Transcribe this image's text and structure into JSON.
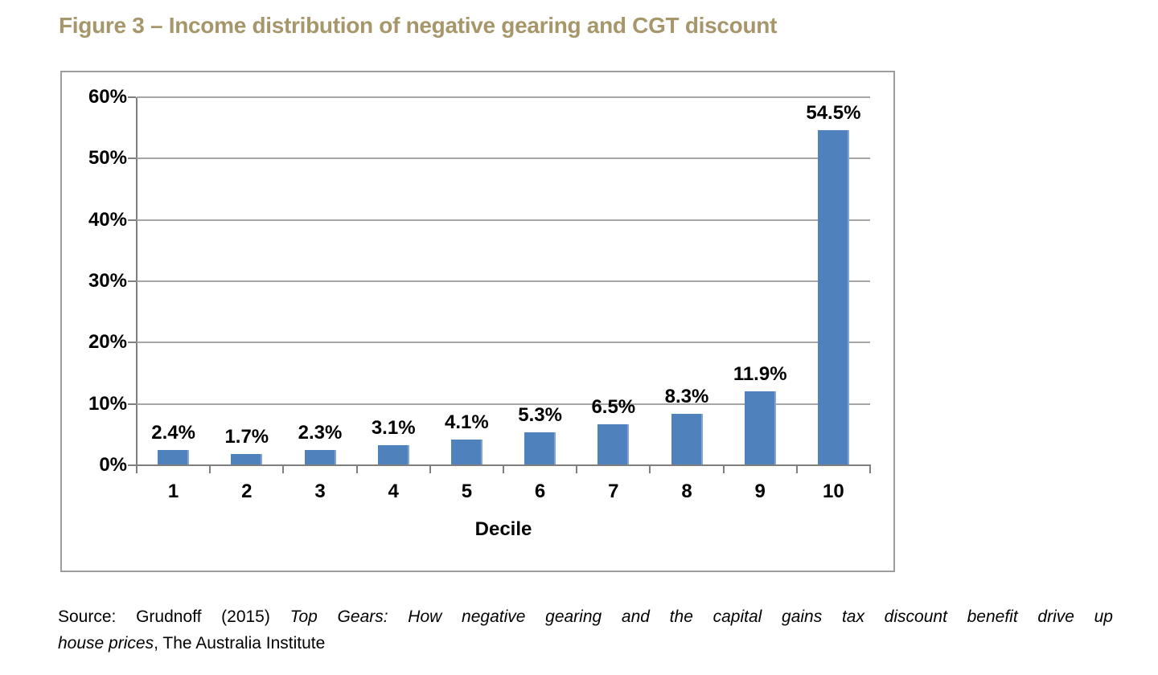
{
  "colors": {
    "bar": "#4f81bd",
    "bar_edge": "#82a6d4",
    "grid": "#a6a6a6",
    "axis": "#7f7f7f",
    "frame": "#9d9d9d",
    "title": "#a6966a",
    "label": "#000000"
  },
  "chart_data": {
    "type": "bar",
    "title": "Figure 3 – Income distribution of negative gearing and CGT discount",
    "categories": [
      "1",
      "2",
      "3",
      "4",
      "5",
      "6",
      "7",
      "8",
      "9",
      "10"
    ],
    "values": [
      2.4,
      1.7,
      2.3,
      3.1,
      4.1,
      5.3,
      6.5,
      8.3,
      11.9,
      54.5
    ],
    "data_labels": [
      "2.4%",
      "1.7%",
      "2.3%",
      "3.1%",
      "4.1%",
      "5.3%",
      "6.5%",
      "8.3%",
      "11.9%",
      "54.5%"
    ],
    "xlabel": "Decile",
    "ylabel": "",
    "ylim": [
      0,
      60
    ],
    "ytick_step": 10,
    "ytick_labels": [
      "0%",
      "10%",
      "20%",
      "30%",
      "40%",
      "50%",
      "60%"
    ],
    "grid": true,
    "legend": false,
    "bar_color": "#4f81bd"
  },
  "source": {
    "line1_regular": "Source: Grudnoff (2015) ",
    "line1_italic": "Top Gears: How negative gearing and the capital gains tax discount benefit drive up",
    "line2_italic": "house prices",
    "line2_regular": ", The Australia Institute"
  }
}
